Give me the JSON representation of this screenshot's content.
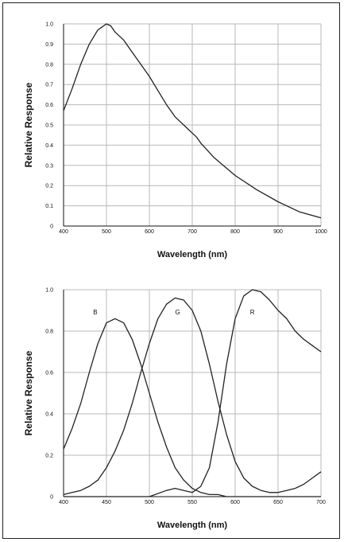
{
  "chart_data": [
    {
      "type": "line",
      "xlabel": "Wavelength (nm)",
      "ylabel": "Relative Response",
      "xlim": [
        400,
        1000
      ],
      "ylim": [
        0,
        1.0
      ],
      "xticks": [
        400,
        500,
        600,
        700,
        800,
        900,
        1000
      ],
      "yticks": [
        0,
        0.1,
        0.2,
        0.3,
        0.4,
        0.5,
        0.6,
        0.7,
        0.8,
        0.9,
        1.0
      ],
      "ytick_labels": [
        "0",
        "0.1",
        "0.2",
        "0.3",
        "0.4",
        "0.5",
        "0.6",
        "0.7",
        "0.8",
        "0.9",
        "1.0"
      ],
      "grid": true,
      "series": [
        {
          "x": [
            400,
            420,
            440,
            460,
            480,
            500,
            510,
            520,
            540,
            560,
            580,
            600,
            620,
            640,
            660,
            680,
            690,
            700,
            710,
            720,
            750,
            800,
            850,
            900,
            950,
            1000
          ],
          "y": [
            0.57,
            0.68,
            0.8,
            0.9,
            0.97,
            1.0,
            0.99,
            0.96,
            0.92,
            0.86,
            0.8,
            0.74,
            0.67,
            0.6,
            0.54,
            0.5,
            0.48,
            0.46,
            0.44,
            0.41,
            0.34,
            0.25,
            0.18,
            0.12,
            0.07,
            0.04
          ]
        }
      ]
    },
    {
      "type": "line",
      "xlabel": "Wavelength (nm)",
      "ylabel": "Relative Response",
      "xlim": [
        400,
        700
      ],
      "ylim": [
        0,
        1.0
      ],
      "xticks": [
        400,
        450,
        500,
        550,
        600,
        650,
        700
      ],
      "yticks": [
        0,
        0.2,
        0.4,
        0.6,
        0.8,
        1.0
      ],
      "ytick_labels": [
        "0",
        "0.2",
        "0.4",
        "0.6",
        "0.8",
        "1.0"
      ],
      "grid": true,
      "annotations": [
        {
          "text": "B",
          "x": 437,
          "y": 0.88
        },
        {
          "text": "G",
          "x": 533,
          "y": 0.88
        },
        {
          "text": "R",
          "x": 620,
          "y": 0.88
        }
      ],
      "series": [
        {
          "x": [
            400,
            410,
            420,
            430,
            440,
            450,
            460,
            470,
            480,
            490,
            500,
            510,
            520,
            530,
            540,
            550,
            560,
            570,
            580,
            590,
            600,
            610,
            620,
            630,
            640,
            650,
            660,
            670,
            680,
            690,
            700
          ],
          "y": [
            0.23,
            0.33,
            0.45,
            0.6,
            0.74,
            0.84,
            0.86,
            0.84,
            0.76,
            0.64,
            0.5,
            0.36,
            0.24,
            0.14,
            0.08,
            0.04,
            0.02,
            0.01,
            0.01,
            0.0,
            0.0,
            0.0,
            0.0,
            0.0,
            0.0,
            0.0,
            0.0,
            0.0,
            0.0,
            0.0,
            0.0
          ]
        },
        {
          "x": [
            400,
            410,
            420,
            430,
            440,
            450,
            460,
            470,
            480,
            490,
            500,
            510,
            520,
            530,
            540,
            550,
            560,
            570,
            580,
            590,
            600,
            610,
            620,
            630,
            640,
            650,
            660,
            670,
            680,
            690,
            700
          ],
          "y": [
            0.01,
            0.02,
            0.03,
            0.05,
            0.08,
            0.14,
            0.22,
            0.32,
            0.45,
            0.6,
            0.74,
            0.86,
            0.93,
            0.96,
            0.95,
            0.9,
            0.8,
            0.64,
            0.46,
            0.3,
            0.17,
            0.09,
            0.05,
            0.03,
            0.02,
            0.02,
            0.03,
            0.04,
            0.06,
            0.09,
            0.12
          ]
        },
        {
          "x": [
            400,
            450,
            500,
            520,
            530,
            540,
            550,
            560,
            570,
            580,
            590,
            600,
            610,
            620,
            630,
            640,
            650,
            660,
            670,
            680,
            690,
            700
          ],
          "y": [
            0.0,
            0.0,
            0.0,
            0.03,
            0.04,
            0.03,
            0.02,
            0.05,
            0.14,
            0.36,
            0.64,
            0.86,
            0.97,
            1.0,
            0.99,
            0.95,
            0.9,
            0.86,
            0.8,
            0.76,
            0.73,
            0.7
          ]
        }
      ]
    }
  ]
}
